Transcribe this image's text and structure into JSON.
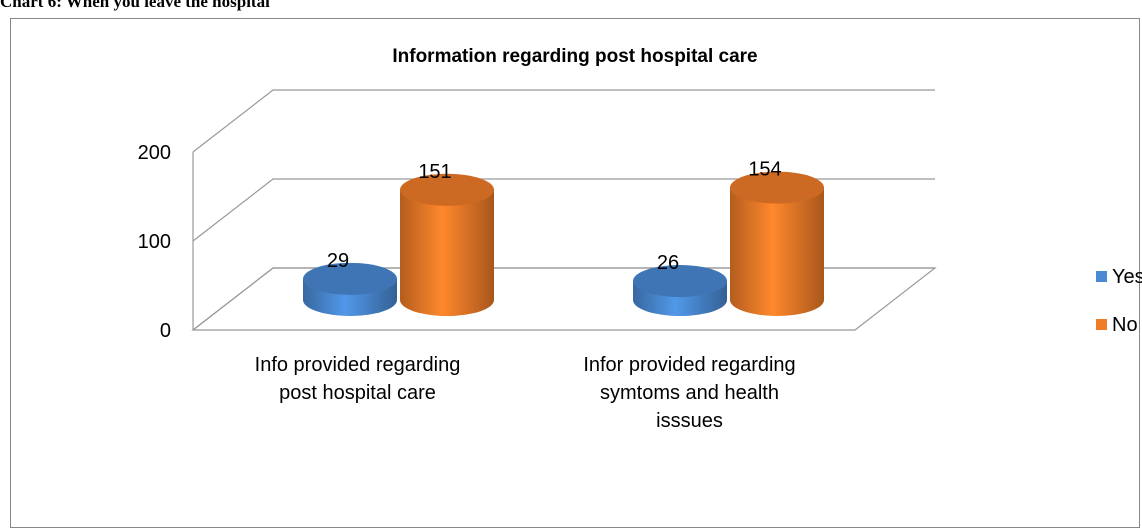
{
  "caption": "Chart 6: When you leave the hospital",
  "chart_data": {
    "type": "bar3d",
    "title": "Information regarding post hospital care",
    "categories": [
      "Info provided regarding post hospital care",
      "Infor provided regarding symtoms and health isssues"
    ],
    "series": [
      {
        "name": "Yes",
        "color": "#4a8ad4",
        "values": [
          29,
          26
        ]
      },
      {
        "name": "No",
        "color": "#f07c28",
        "values": [
          151,
          154
        ]
      }
    ],
    "ylim": [
      0,
      200
    ],
    "yticks": [
      0,
      100,
      200
    ],
    "grid": true,
    "legend": "right"
  }
}
